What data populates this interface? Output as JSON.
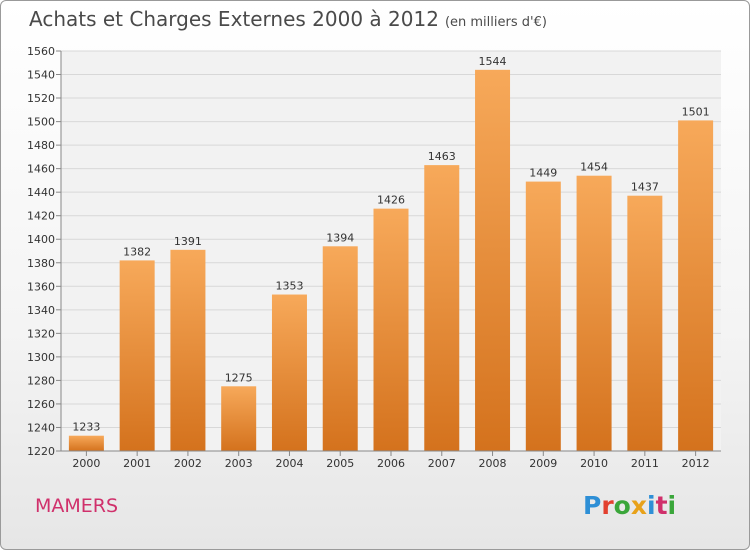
{
  "title": "Achats et Charges Externes 2000 à 2012",
  "unit": "(en milliers d'€)",
  "commune": "MAMERS",
  "logo": {
    "letters": [
      "P",
      "r",
      "o",
      "x",
      "i",
      "t",
      "i"
    ],
    "colors": [
      "#2e8fd6",
      "#e2402f",
      "#3aa63a",
      "#e8a21a",
      "#2e8fd6",
      "#d0306b",
      "#3aa63a"
    ]
  },
  "colors": {
    "bar_light": "#f7a95a",
    "bar_dark": "#d4721d",
    "grid": "#d8d8d8",
    "text": "#333333"
  },
  "chart_data": {
    "type": "bar",
    "categories": [
      "2000",
      "2001",
      "2002",
      "2003",
      "2004",
      "2005",
      "2006",
      "2007",
      "2008",
      "2009",
      "2010",
      "2011",
      "2012"
    ],
    "values": [
      1233,
      1382,
      1391,
      1275,
      1353,
      1394,
      1426,
      1463,
      1544,
      1449,
      1454,
      1437,
      1501
    ],
    "ylim": [
      1220,
      1560
    ],
    "yticks": [
      1220,
      1240,
      1260,
      1280,
      1300,
      1320,
      1340,
      1360,
      1380,
      1400,
      1420,
      1440,
      1460,
      1480,
      1500,
      1520,
      1540,
      1560
    ],
    "xlabel": "",
    "ylabel": "",
    "grid": true,
    "data_labels": true
  }
}
